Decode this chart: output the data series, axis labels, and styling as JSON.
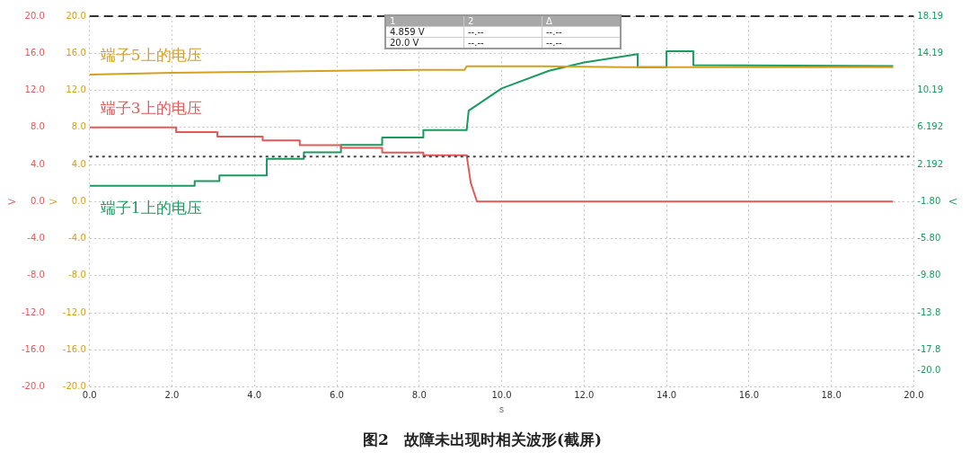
{
  "chart_data": {
    "type": "line",
    "title": "图2　故障未出现时相关波形(截屏)",
    "xlabel": "s",
    "ylabel": "V",
    "y2label": "V",
    "y3label": "V",
    "xlim": [
      0,
      20
    ],
    "xticks": [
      {
        "value": 0,
        "label": "0.0"
      },
      {
        "value": 2,
        "label": "2.0"
      },
      {
        "value": 4,
        "label": "4.0"
      },
      {
        "value": 6,
        "label": "6.0"
      },
      {
        "value": 8,
        "label": "8.0"
      },
      {
        "value": 10,
        "label": "10.0"
      },
      {
        "value": 12,
        "label": "12.0"
      },
      {
        "value": 14,
        "label": "14.0"
      },
      {
        "value": 16,
        "label": "16.0"
      },
      {
        "value": 18,
        "label": "18.0"
      },
      {
        "value": 20,
        "label": "20.0"
      }
    ],
    "ylim": [
      -20,
      20
    ],
    "yticks": [
      {
        "value": -20,
        "label": "-20.0"
      },
      {
        "value": -16,
        "label": "-16.0"
      },
      {
        "value": -12,
        "label": "-12.0"
      },
      {
        "value": -8,
        "label": "-8.0"
      },
      {
        "value": -4,
        "label": "-4.0"
      },
      {
        "value": 0,
        "label": "0.0"
      },
      {
        "value": 4,
        "label": "4.0"
      },
      {
        "value": 8,
        "label": "8.0"
      },
      {
        "value": 12,
        "label": "12.0"
      },
      {
        "value": 16,
        "label": "16.0"
      },
      {
        "value": 20,
        "label": "20.0"
      }
    ],
    "y3lim": [
      -20,
      20
    ],
    "y3ticks": [
      {
        "value": -20,
        "label": "-20.0"
      },
      {
        "value": -16,
        "label": "-16.0"
      },
      {
        "value": -12,
        "label": "-12.0"
      },
      {
        "value": -8,
        "label": "-8.0"
      },
      {
        "value": -4,
        "label": "-4.0"
      },
      {
        "value": 0,
        "label": "0.0"
      },
      {
        "value": 4,
        "label": "4.0"
      },
      {
        "value": 8,
        "label": "8.0"
      },
      {
        "value": 12,
        "label": "12.0"
      },
      {
        "value": 16,
        "label": "16.0"
      },
      {
        "value": 20,
        "label": "20.0"
      }
    ],
    "y2lim": [
      -21.81,
      18.19
    ],
    "y2ticks": [
      18.19,
      14.19,
      10.19,
      6.192,
      2.192,
      {
        "value": -1.8,
        "label": "-1.80"
      },
      {
        "value": -5.8,
        "label": "-5.80"
      },
      {
        "value": -9.8,
        "label": "-9.80"
      },
      -13.8,
      -17.8,
      {
        "value": -20,
        "label": "-20.0"
      }
    ],
    "grid": true,
    "legend": false,
    "marker": "none",
    "line_style": "solid",
    "ref_lines": [
      {
        "axis": "y",
        "value": 20,
        "color": "#333333",
        "line_style": "dashed"
      },
      {
        "axis": "y",
        "value": 4.859,
        "color": "#444444",
        "line_style": "dotted"
      }
    ],
    "annotations": [
      "1",
      "2",
      "Δ",
      "4.859 V",
      "--.--",
      "--.--",
      "20.0 V",
      "--.--",
      "--.--"
    ],
    "series": [
      {
        "name": "端子5上的电压",
        "color": "#d4a020",
        "axis": "y3",
        "x": [
          0,
          2,
          4,
          6,
          8,
          9.1,
          9.15,
          11,
          13,
          15,
          17,
          19.5
        ],
        "values": [
          13.7,
          13.9,
          14.0,
          14.1,
          14.2,
          14.2,
          14.6,
          14.6,
          14.5,
          14.5,
          14.5,
          14.5
        ]
      },
      {
        "name": "端子3上的电压",
        "color": "#e05a5a",
        "axis": "y",
        "x": [
          0,
          2.1,
          2.1,
          3.1,
          3.1,
          4.2,
          4.2,
          5.1,
          5.1,
          6.1,
          6.1,
          7.1,
          7.1,
          8.1,
          8.1,
          9.15,
          9.25,
          9.4,
          19.5
        ],
        "values": [
          8.0,
          8.0,
          7.5,
          7.5,
          7.0,
          7.0,
          6.6,
          6.6,
          6.1,
          6.1,
          5.8,
          5.8,
          5.3,
          5.3,
          5.0,
          5.0,
          2.0,
          0,
          0
        ]
      },
      {
        "name": "端子1上的电压",
        "color": "#1a9a60",
        "axis": "y2",
        "x": [
          0,
          2.55,
          2.55,
          3.15,
          3.15,
          4.3,
          4.3,
          5.2,
          5.2,
          6.1,
          6.1,
          7.1,
          7.1,
          8.1,
          8.1,
          9.15,
          9.2,
          10,
          11.15,
          12,
          13.3,
          13.3,
          14,
          14,
          14.65,
          14.65,
          19.5
        ],
        "values": [
          -0.1,
          -0.1,
          0.4,
          0.4,
          1.0,
          1.0,
          2.8,
          2.8,
          3.5,
          3.5,
          4.3,
          4.3,
          5.1,
          5.1,
          5.9,
          5.9,
          8.0,
          10.4,
          12.3,
          13.2,
          14.1,
          12.7,
          12.7,
          14.4,
          14.4,
          12.9,
          12.8
        ]
      }
    ]
  }
}
